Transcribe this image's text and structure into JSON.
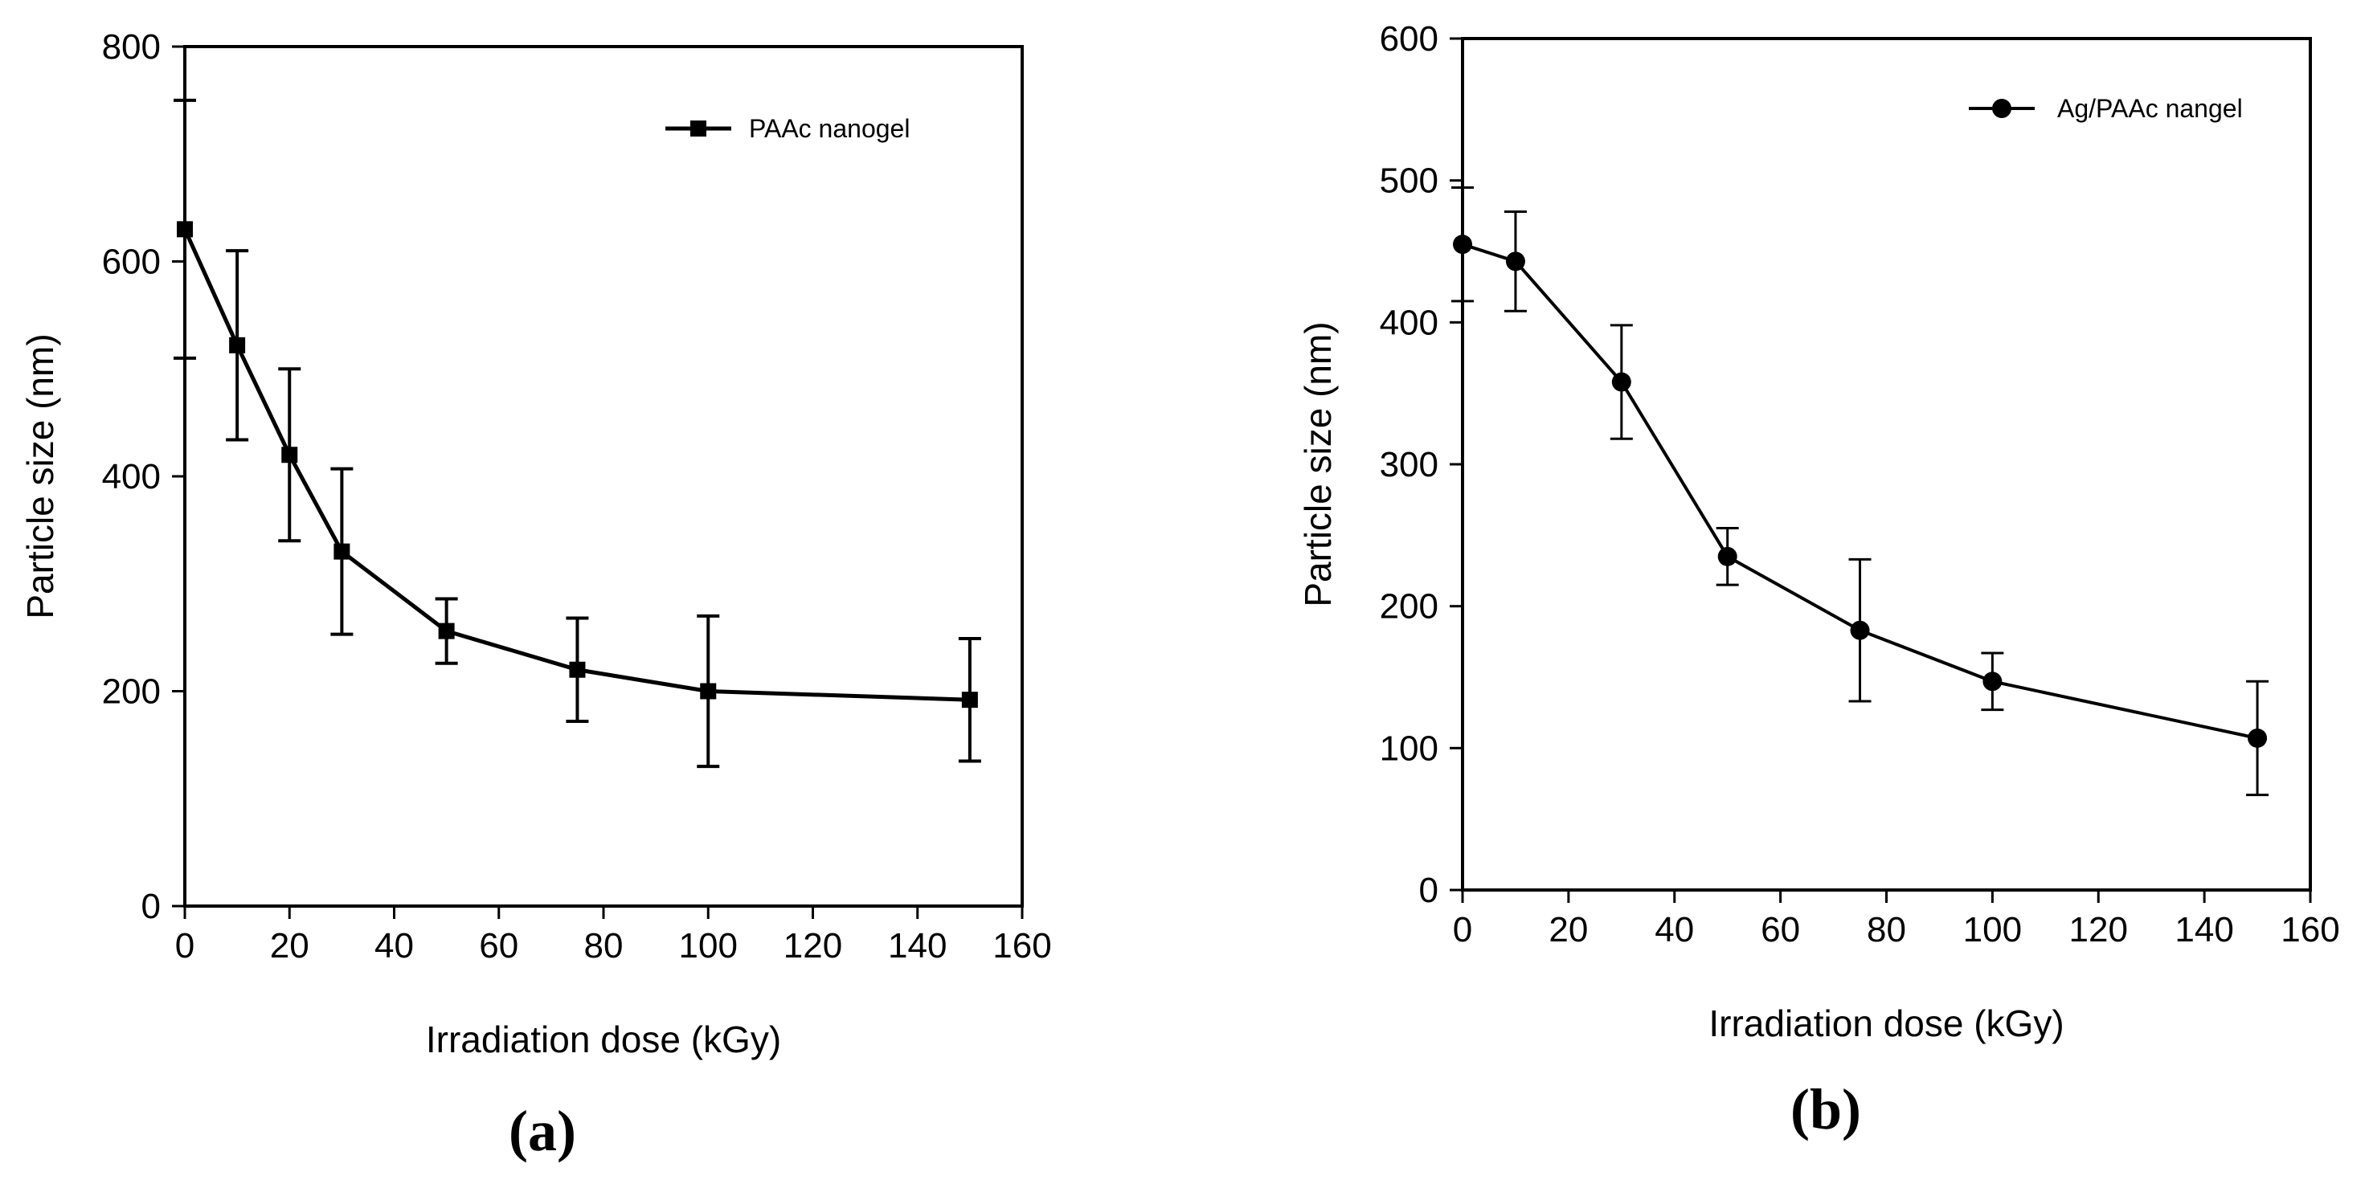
{
  "chart_data": [
    {
      "type": "line",
      "panel_label": "(a)",
      "xlabel": "Irradiation dose (kGy)",
      "ylabel": "Particle size (nm)",
      "xlim": [
        0,
        160
      ],
      "ylim": [
        0,
        800
      ],
      "xticks": [
        "0",
        "20",
        "40",
        "60",
        "80",
        "100",
        "120",
        "140",
        "160"
      ],
      "yticks": [
        "0",
        "200",
        "400",
        "600",
        "800"
      ],
      "grid": false,
      "legend_position": "top-right",
      "marker": "square",
      "series": [
        {
          "name": "PAAc nanogel",
          "x": [
            0,
            10,
            20,
            30,
            50,
            75,
            100,
            150
          ],
          "y": [
            630,
            522,
            420,
            330,
            256,
            220,
            200,
            192
          ],
          "err": [
            120,
            88,
            80,
            77,
            30,
            48,
            70,
            57
          ]
        }
      ]
    },
    {
      "type": "line",
      "panel_label": "(b)",
      "xlabel": "Irradiation dose (kGy)",
      "ylabel": "Particle size (nm)",
      "xlim": [
        0,
        160
      ],
      "ylim": [
        0,
        600
      ],
      "xticks": [
        "0",
        "20",
        "40",
        "60",
        "80",
        "100",
        "120",
        "140",
        "160"
      ],
      "yticks": [
        "0",
        "100",
        "200",
        "300",
        "400",
        "500",
        "600"
      ],
      "grid": false,
      "legend_position": "top-right",
      "marker": "circle",
      "series": [
        {
          "name": "Ag/PAAc nangel",
          "x": [
            0,
            10,
            30,
            50,
            75,
            100,
            150
          ],
          "y": [
            455,
            443,
            358,
            235,
            183,
            147,
            107
          ],
          "err": [
            40,
            35,
            40,
            20,
            50,
            20,
            40
          ]
        }
      ]
    }
  ]
}
